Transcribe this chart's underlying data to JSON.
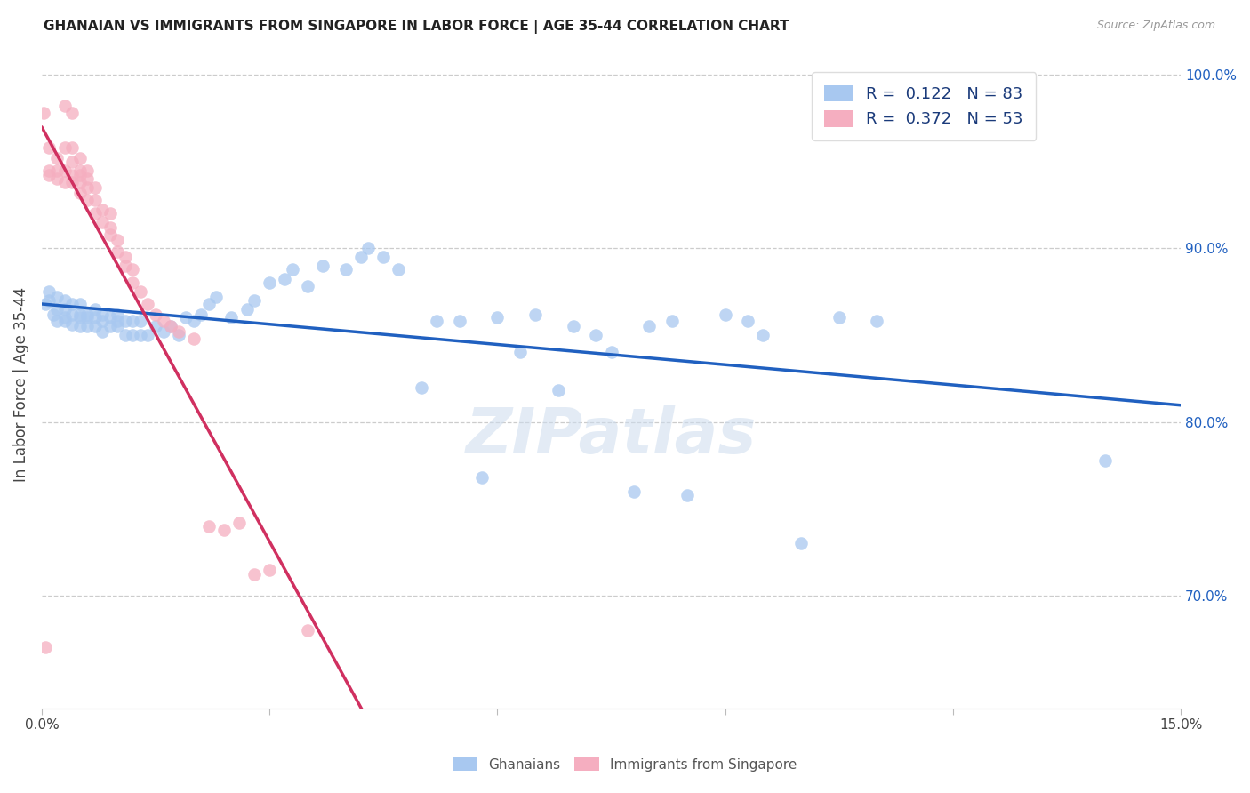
{
  "title": "GHANAIAN VS IMMIGRANTS FROM SINGAPORE IN LABOR FORCE | AGE 35-44 CORRELATION CHART",
  "source": "Source: ZipAtlas.com",
  "ylabel": "In Labor Force | Age 35-44",
  "x_min": 0.0,
  "x_max": 0.15,
  "y_min": 0.635,
  "y_max": 1.008,
  "y_ticks": [
    0.7,
    0.8,
    0.9,
    1.0
  ],
  "y_tick_labels": [
    "70.0%",
    "80.0%",
    "90.0%",
    "100.0%"
  ],
  "blue_color": "#a8c8f0",
  "pink_color": "#f5aec0",
  "blue_line_color": "#2060c0",
  "pink_line_color": "#d03060",
  "R_blue": 0.122,
  "N_blue": 83,
  "R_pink": 0.372,
  "N_pink": 53,
  "legend_label_blue": "Ghanaians",
  "legend_label_pink": "Immigrants from Singapore",
  "watermark": "ZIPatlas",
  "blue_scatter_x": [
    0.0005,
    0.001,
    0.001,
    0.0015,
    0.002,
    0.002,
    0.002,
    0.003,
    0.003,
    0.003,
    0.003,
    0.004,
    0.004,
    0.004,
    0.005,
    0.005,
    0.005,
    0.005,
    0.006,
    0.006,
    0.006,
    0.007,
    0.007,
    0.007,
    0.008,
    0.008,
    0.008,
    0.009,
    0.009,
    0.01,
    0.01,
    0.01,
    0.011,
    0.011,
    0.012,
    0.012,
    0.013,
    0.013,
    0.014,
    0.015,
    0.016,
    0.017,
    0.018,
    0.019,
    0.02,
    0.021,
    0.022,
    0.023,
    0.025,
    0.027,
    0.028,
    0.03,
    0.032,
    0.033,
    0.035,
    0.037,
    0.04,
    0.042,
    0.043,
    0.045,
    0.047,
    0.05,
    0.052,
    0.055,
    0.058,
    0.06,
    0.063,
    0.065,
    0.068,
    0.07,
    0.073,
    0.075,
    0.078,
    0.08,
    0.083,
    0.085,
    0.09,
    0.093,
    0.095,
    0.1,
    0.105,
    0.11,
    0.14
  ],
  "blue_scatter_y": [
    0.868,
    0.87,
    0.875,
    0.862,
    0.858,
    0.865,
    0.872,
    0.86,
    0.865,
    0.87,
    0.858,
    0.856,
    0.862,
    0.868,
    0.855,
    0.86,
    0.862,
    0.868,
    0.855,
    0.86,
    0.862,
    0.855,
    0.86,
    0.865,
    0.852,
    0.858,
    0.862,
    0.855,
    0.86,
    0.855,
    0.858,
    0.862,
    0.85,
    0.858,
    0.85,
    0.858,
    0.85,
    0.858,
    0.85,
    0.855,
    0.852,
    0.855,
    0.85,
    0.86,
    0.858,
    0.862,
    0.868,
    0.872,
    0.86,
    0.865,
    0.87,
    0.88,
    0.882,
    0.888,
    0.878,
    0.89,
    0.888,
    0.895,
    0.9,
    0.895,
    0.888,
    0.82,
    0.858,
    0.858,
    0.768,
    0.86,
    0.84,
    0.862,
    0.818,
    0.855,
    0.85,
    0.84,
    0.76,
    0.855,
    0.858,
    0.758,
    0.862,
    0.858,
    0.85,
    0.73,
    0.86,
    0.858,
    0.778
  ],
  "pink_scatter_x": [
    0.0003,
    0.0005,
    0.001,
    0.001,
    0.001,
    0.002,
    0.002,
    0.002,
    0.003,
    0.003,
    0.003,
    0.003,
    0.004,
    0.004,
    0.004,
    0.004,
    0.004,
    0.005,
    0.005,
    0.005,
    0.005,
    0.005,
    0.006,
    0.006,
    0.006,
    0.006,
    0.007,
    0.007,
    0.007,
    0.008,
    0.008,
    0.009,
    0.009,
    0.009,
    0.01,
    0.01,
    0.011,
    0.011,
    0.012,
    0.012,
    0.013,
    0.014,
    0.015,
    0.016,
    0.017,
    0.018,
    0.02,
    0.022,
    0.024,
    0.026,
    0.028,
    0.03,
    0.035
  ],
  "pink_scatter_y": [
    0.978,
    0.67,
    0.942,
    0.945,
    0.958,
    0.94,
    0.945,
    0.952,
    0.938,
    0.945,
    0.958,
    0.982,
    0.938,
    0.942,
    0.95,
    0.958,
    0.978,
    0.932,
    0.938,
    0.942,
    0.945,
    0.952,
    0.928,
    0.935,
    0.94,
    0.945,
    0.92,
    0.928,
    0.935,
    0.915,
    0.922,
    0.908,
    0.912,
    0.92,
    0.898,
    0.905,
    0.89,
    0.895,
    0.88,
    0.888,
    0.875,
    0.868,
    0.862,
    0.858,
    0.855,
    0.852,
    0.848,
    0.74,
    0.738,
    0.742,
    0.712,
    0.715,
    0.68
  ]
}
